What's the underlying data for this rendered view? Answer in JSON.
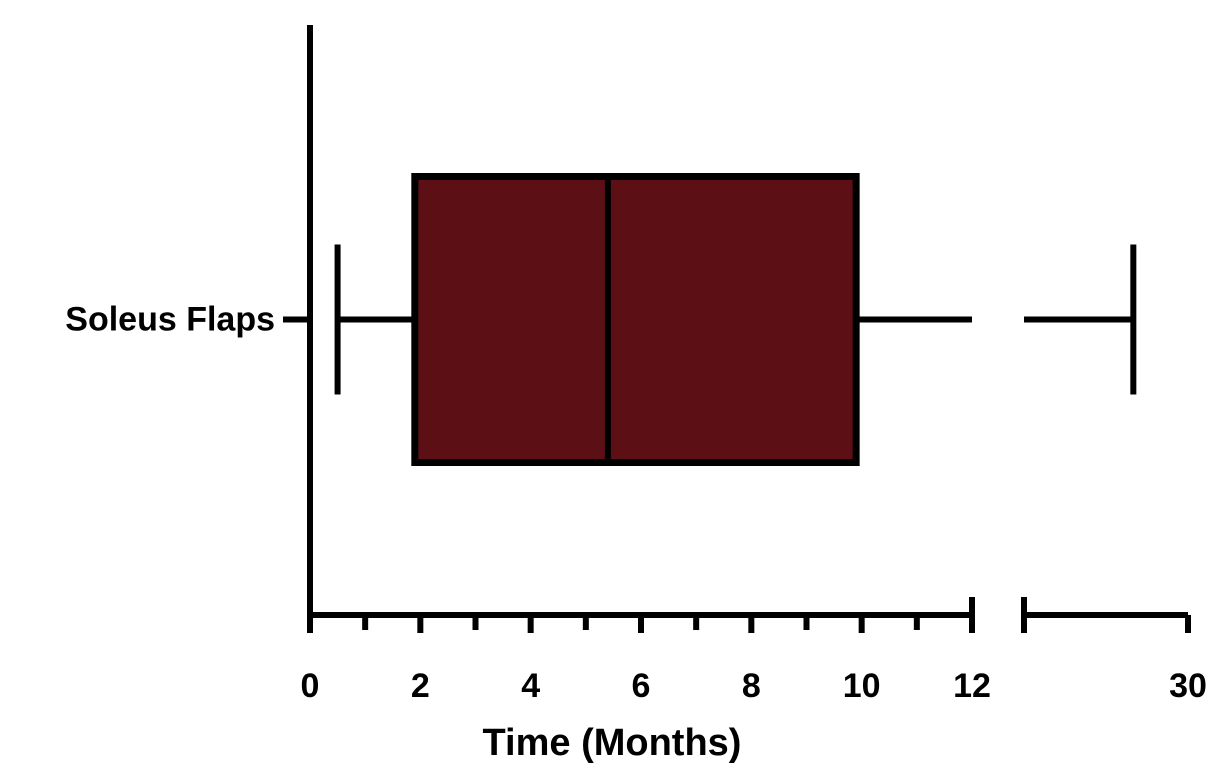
{
  "chart_data": {
    "type": "box",
    "categories": [
      "Soleus Flaps"
    ],
    "boxes": [
      {
        "min": 0.5,
        "q1": 1.9,
        "median": 5.4,
        "q3": 9.9,
        "max": 28
      }
    ],
    "color": "#5c1015",
    "xlabel": "Time (Months)",
    "xsegments": [
      [
        0,
        12
      ],
      [
        24,
        30
      ]
    ],
    "xticks": [
      0,
      2,
      4,
      6,
      8,
      10,
      12,
      30
    ],
    "xminorticks": [
      1,
      3,
      5,
      7,
      9,
      11,
      24
    ]
  }
}
